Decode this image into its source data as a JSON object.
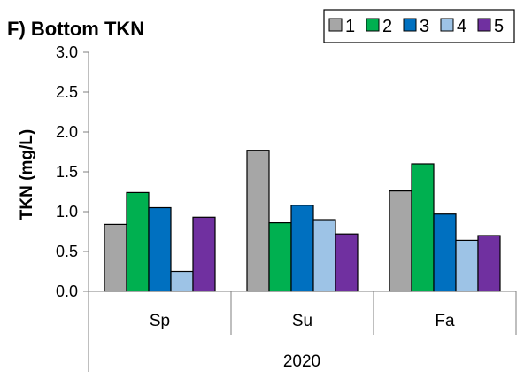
{
  "chart_data": {
    "type": "bar",
    "title": "F) Bottom TKN",
    "ylabel": "TKN (mg/L)",
    "xlabel": "",
    "group_label": "2020",
    "categories": [
      "Sp",
      "Su",
      "Fa"
    ],
    "ylim": [
      0,
      3.0
    ],
    "yticks": [
      "0.0",
      "0.5",
      "1.0",
      "1.5",
      "2.0",
      "2.5",
      "3.0"
    ],
    "ytick_values": [
      0,
      0.5,
      1.0,
      1.5,
      2.0,
      2.5,
      3.0
    ],
    "grid": false,
    "legend_position": "top-right",
    "series": [
      {
        "name": "1",
        "color": "#a6a6a6",
        "values": [
          0.84,
          1.77,
          1.26
        ]
      },
      {
        "name": "2",
        "color": "#00b050",
        "values": [
          1.24,
          0.86,
          1.6
        ]
      },
      {
        "name": "3",
        "color": "#0070c0",
        "values": [
          1.05,
          1.08,
          0.97
        ]
      },
      {
        "name": "4",
        "color": "#9dc3e6",
        "values": [
          0.25,
          0.9,
          0.64
        ]
      },
      {
        "name": "5",
        "color": "#7030a0",
        "values": [
          0.93,
          0.72,
          0.7
        ]
      }
    ]
  }
}
